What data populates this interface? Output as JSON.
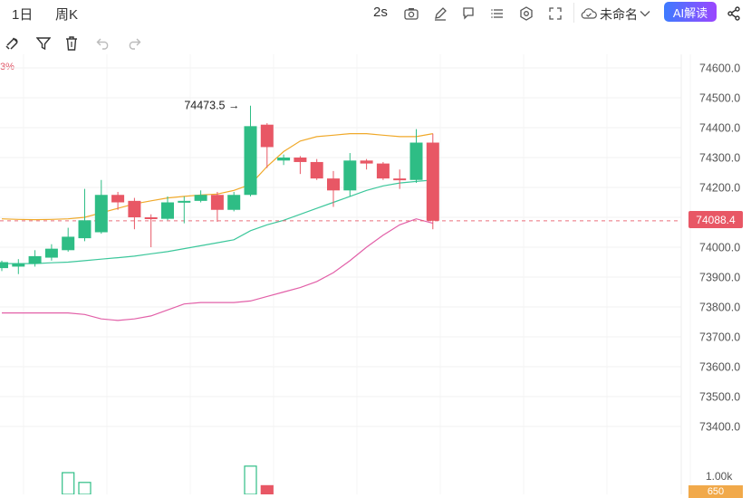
{
  "header": {
    "interval_1": "1日",
    "interval_2": "周K",
    "refresh": "2s",
    "layout_name": "未命名",
    "ai_button": "AI解读",
    "icons": [
      "camera-icon",
      "pencil-icon",
      "comment-icon",
      "list-icon",
      "settings-icon",
      "fullscreen-icon",
      "cloud-check-icon",
      "chevron-down-icon",
      "share-icon"
    ]
  },
  "toolbar2": {
    "icons": [
      "magnet-icon",
      "filter-icon",
      "trash-icon",
      "undo-icon",
      "redo-icon"
    ]
  },
  "indicator": {
    "partial_label": "3%"
  },
  "chart_data": {
    "type": "candlestick",
    "y_ticks": [
      "74600.0",
      "74500.0",
      "74400.0",
      "74300.0",
      "74200.0",
      "74100.0",
      "74000.0",
      "73900.0",
      "73800.0",
      "73700.0",
      "73600.0",
      "73500.0",
      "73400.0"
    ],
    "ylim": [
      73350,
      74700
    ],
    "colors": {
      "up": "#2ebd85",
      "down": "#e85765",
      "ma_yellow": "#f0a92a",
      "ma_green": "#3cc79b",
      "ma_pink": "#e260a8"
    },
    "high_annotation": "74473.5",
    "current_price": "74088.4",
    "candles": [
      {
        "o": 73930,
        "c": 73950,
        "h": 73955,
        "l": 73920
      },
      {
        "o": 73935,
        "c": 73945,
        "h": 73960,
        "l": 73910
      },
      {
        "o": 73945,
        "c": 73970,
        "h": 73990,
        "l": 73935
      },
      {
        "o": 73965,
        "c": 73995,
        "h": 74010,
        "l": 73955
      },
      {
        "o": 73990,
        "c": 74035,
        "h": 74065,
        "l": 73985
      },
      {
        "o": 74030,
        "c": 74090,
        "h": 74195,
        "l": 74020
      },
      {
        "o": 74050,
        "c": 74175,
        "h": 74225,
        "l": 74045
      },
      {
        "o": 74175,
        "c": 74150,
        "h": 74185,
        "l": 74125
      },
      {
        "o": 74155,
        "c": 74100,
        "h": 74165,
        "l": 74060
      },
      {
        "o": 74100,
        "c": 74095,
        "h": 74110,
        "l": 74000
      },
      {
        "o": 74095,
        "c": 74150,
        "h": 74170,
        "l": 74090
      },
      {
        "o": 74150,
        "c": 74155,
        "h": 74170,
        "l": 74080
      },
      {
        "o": 74155,
        "c": 74175,
        "h": 74190,
        "l": 74150
      },
      {
        "o": 74175,
        "c": 74125,
        "h": 74185,
        "l": 74085
      },
      {
        "o": 74125,
        "c": 74175,
        "h": 74185,
        "l": 74120
      },
      {
        "o": 74175,
        "c": 74405,
        "h": 74473.5,
        "l": 74170
      },
      {
        "o": 74410,
        "c": 74335,
        "h": 74415,
        "l": 74265
      },
      {
        "o": 74290,
        "c": 74300,
        "h": 74310,
        "l": 74275
      },
      {
        "o": 74300,
        "c": 74285,
        "h": 74305,
        "l": 74245
      },
      {
        "o": 74285,
        "c": 74230,
        "h": 74295,
        "l": 74225
      },
      {
        "o": 74230,
        "c": 74190,
        "h": 74255,
        "l": 74135
      },
      {
        "o": 74190,
        "c": 74290,
        "h": 74315,
        "l": 74170
      },
      {
        "o": 74290,
        "c": 74280,
        "h": 74295,
        "l": 74260
      },
      {
        "o": 74280,
        "c": 74230,
        "h": 74285,
        "l": 74225
      },
      {
        "o": 74230,
        "c": 74225,
        "h": 74260,
        "l": 74195
      },
      {
        "o": 74225,
        "c": 74350,
        "h": 74395,
        "l": 74215
      },
      {
        "o": 74350,
        "c": 74088.4,
        "h": 74380,
        "l": 74060
      }
    ],
    "ma_yellow": [
      74095,
      74093,
      74092,
      74093,
      74095,
      74100,
      74115,
      74130,
      74145,
      74155,
      74165,
      74170,
      74175,
      74178,
      74190,
      74210,
      74270,
      74320,
      74355,
      74370,
      74375,
      74380,
      74380,
      74375,
      74370,
      74370,
      74380
    ],
    "ma_green": [
      73945,
      73945,
      73945,
      73948,
      73950,
      73955,
      73960,
      73965,
      73970,
      73978,
      73985,
      73995,
      74005,
      74015,
      74025,
      74055,
      74075,
      74090,
      74110,
      74130,
      74150,
      74170,
      74190,
      74205,
      74215,
      74220,
      74225
    ],
    "ma_pink": [
      73780,
      73780,
      73780,
      73780,
      73780,
      73775,
      73760,
      73755,
      73760,
      73770,
      73790,
      73810,
      73815,
      73815,
      73815,
      73820,
      73835,
      73850,
      73865,
      73885,
      73915,
      73955,
      74000,
      74040,
      74075,
      74095,
      74080
    ],
    "volumes_visible": [
      0,
      0,
      0,
      0,
      1,
      0.55,
      0,
      0,
      0,
      0,
      0,
      0,
      0,
      0,
      0,
      1.3,
      0.4,
      0,
      0,
      0,
      0,
      0,
      0,
      0,
      0,
      0,
      0
    ],
    "volume_axis_label": "1.00k",
    "volume_tag": "650"
  }
}
